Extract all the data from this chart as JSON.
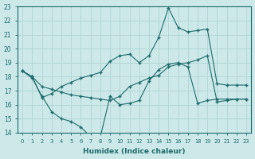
{
  "xlabel": "Humidex (Indice chaleur)",
  "xlim": [
    -0.5,
    23.5
  ],
  "ylim": [
    14,
    23
  ],
  "yticks": [
    14,
    15,
    16,
    17,
    18,
    19,
    20,
    21,
    22,
    23
  ],
  "xticks": [
    0,
    1,
    2,
    3,
    4,
    5,
    6,
    7,
    8,
    9,
    10,
    11,
    12,
    13,
    14,
    15,
    16,
    17,
    18,
    19,
    20,
    21,
    22,
    23
  ],
  "bg_color": "#cce8e8",
  "grid_color": "#b0d4d4",
  "line_color": "#1e6b6b",
  "line1_x": [
    0,
    1,
    2,
    3,
    4,
    5,
    6,
    7,
    8,
    9,
    10,
    11,
    12,
    13,
    14,
    15,
    16,
    17,
    18,
    19,
    20,
    21,
    22,
    23
  ],
  "line1_y": [
    18.4,
    17.9,
    16.6,
    15.5,
    15.0,
    14.8,
    14.4,
    13.7,
    13.7,
    16.6,
    16.0,
    16.1,
    16.3,
    17.7,
    18.5,
    18.9,
    19.0,
    18.7,
    16.1,
    16.3,
    16.4,
    16.4,
    16.4,
    16.4
  ],
  "line2_x": [
    0,
    1,
    2,
    3,
    4,
    5,
    6,
    7,
    8,
    9,
    10,
    11,
    12,
    13,
    14,
    15,
    16,
    17,
    18,
    19,
    20,
    21,
    22,
    23
  ],
  "line2_y": [
    18.4,
    18.0,
    17.3,
    17.1,
    16.9,
    16.7,
    16.6,
    16.5,
    16.4,
    16.3,
    16.6,
    17.3,
    17.6,
    17.9,
    18.1,
    18.7,
    18.9,
    19.0,
    19.2,
    19.5,
    16.2,
    16.3,
    16.4,
    16.4
  ],
  "line3_x": [
    0,
    1,
    2,
    3,
    4,
    5,
    6,
    7,
    8,
    9,
    10,
    11,
    12,
    13,
    14,
    15,
    16,
    17,
    18,
    19,
    20,
    21,
    22,
    23
  ],
  "line3_y": [
    18.4,
    18.0,
    16.5,
    16.8,
    17.3,
    17.6,
    17.9,
    18.1,
    18.3,
    19.1,
    19.5,
    19.6,
    19.0,
    19.5,
    20.8,
    22.9,
    21.5,
    21.2,
    21.3,
    21.4,
    17.5,
    17.4,
    17.4,
    17.4
  ]
}
